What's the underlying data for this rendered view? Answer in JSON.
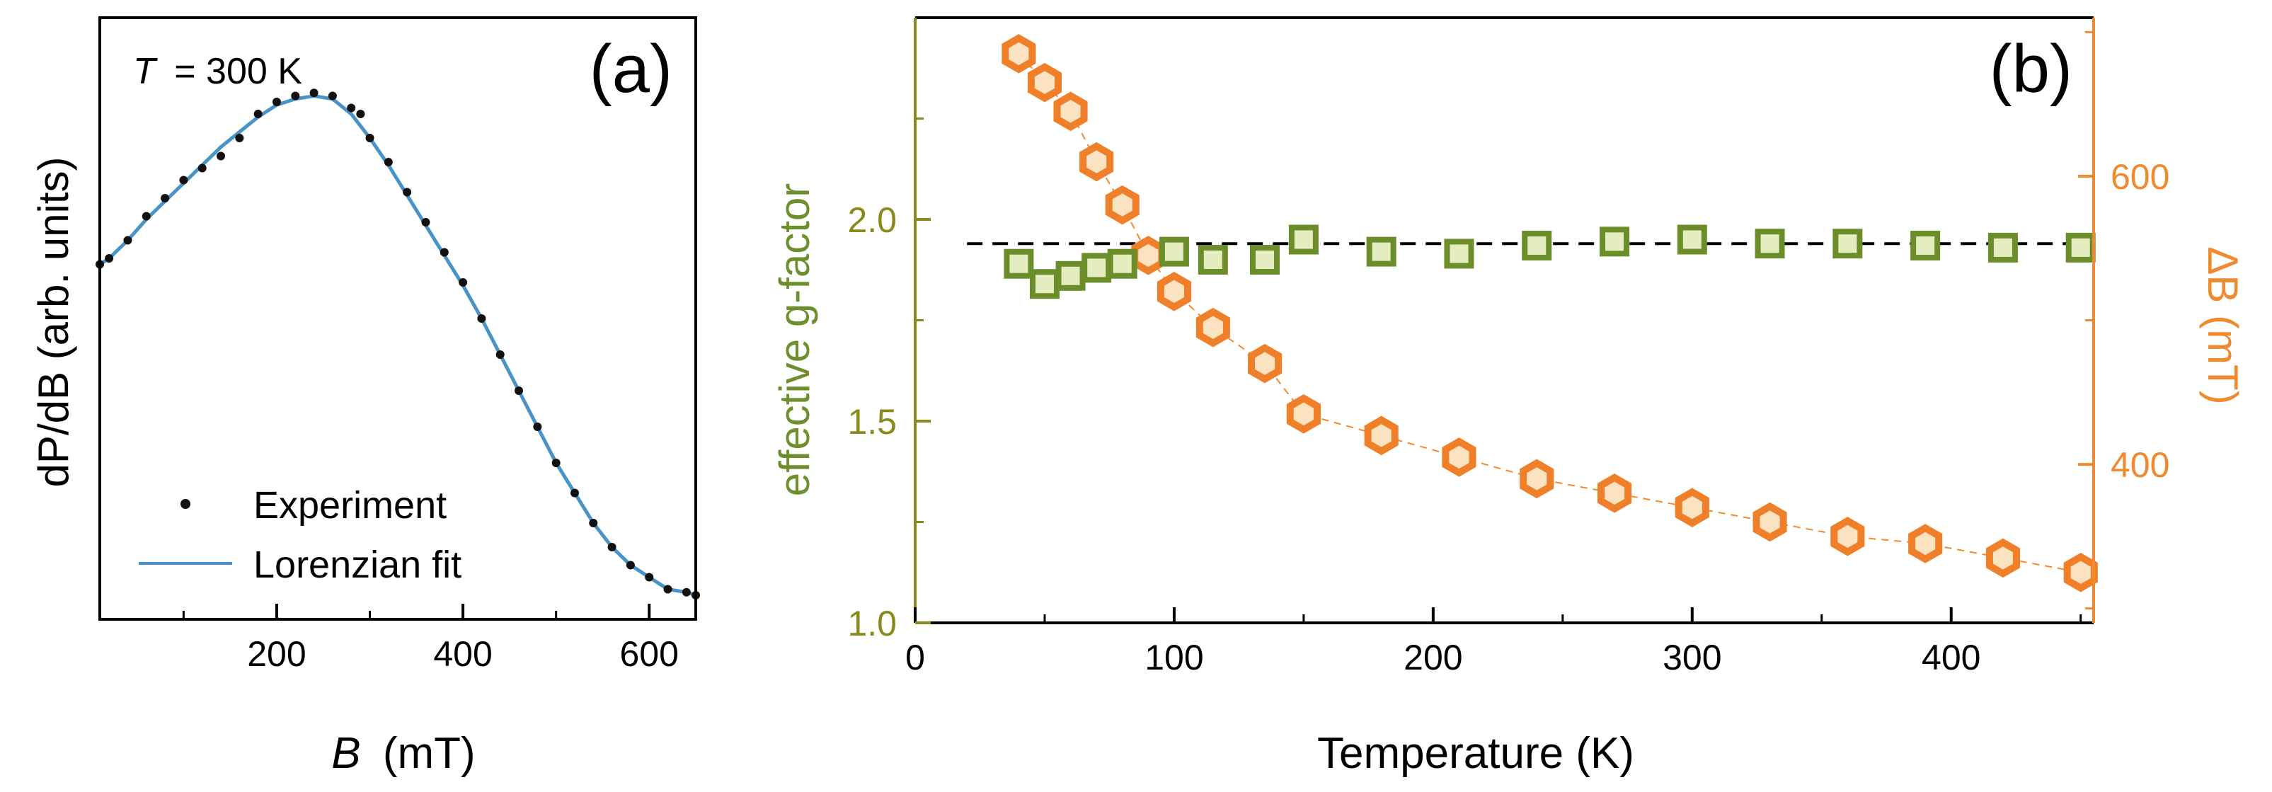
{
  "colors": {
    "axis": "#000000",
    "experiment": "#111111",
    "fit": "#4a93c6",
    "g_axis": "#8a8a1a",
    "g_label": "#6e8f2e",
    "g_marker_stroke": "#6b8e2b",
    "g_marker_fill": "#e4ecc0",
    "db_axis": "#f08a2e",
    "db_label": "#f08a2e",
    "db_marker_stroke": "#f07f2a",
    "db_marker_fill": "#fbe2c0",
    "dashed_ref": "#000000"
  },
  "chart_data": [
    {
      "panel_label": "(a)",
      "type": "line",
      "annotation_prefix": "T",
      "annotation_suffix": "= 300 K",
      "xlabel_italic": "B",
      "xlabel_rest": "(mT)",
      "ylabel": "dP/dB (arb. units)",
      "xlim": [
        10,
        650
      ],
      "ylim": [
        0,
        1
      ],
      "xticks": [
        200,
        400,
        600
      ],
      "xminor": [
        100,
        300,
        500
      ],
      "legend": [
        {
          "label": "Experiment",
          "marker": "dot"
        },
        {
          "label": "Lorenzian fit",
          "marker": "line"
        }
      ],
      "series": [
        {
          "name": "Experiment",
          "x": [
            10,
            20,
            40,
            60,
            80,
            100,
            120,
            140,
            160,
            180,
            200,
            220,
            240,
            260,
            280,
            290,
            300,
            320,
            340,
            360,
            380,
            400,
            420,
            440,
            460,
            480,
            500,
            520,
            540,
            560,
            580,
            600,
            620,
            640,
            650
          ],
          "y": [
            0.59,
            0.6,
            0.63,
            0.67,
            0.7,
            0.73,
            0.75,
            0.77,
            0.8,
            0.84,
            0.86,
            0.87,
            0.875,
            0.87,
            0.85,
            0.84,
            0.8,
            0.76,
            0.71,
            0.66,
            0.61,
            0.56,
            0.5,
            0.44,
            0.38,
            0.32,
            0.26,
            0.21,
            0.16,
            0.12,
            0.09,
            0.07,
            0.05,
            0.045,
            0.04
          ]
        },
        {
          "name": "Lorenzian fit",
          "x": [
            10,
            20,
            40,
            60,
            80,
            100,
            120,
            140,
            160,
            180,
            200,
            220,
            240,
            260,
            280,
            300,
            320,
            340,
            360,
            380,
            400,
            420,
            440,
            460,
            480,
            500,
            520,
            540,
            560,
            580,
            600,
            620,
            640,
            650
          ],
          "y": [
            0.59,
            0.6,
            0.63,
            0.665,
            0.695,
            0.725,
            0.755,
            0.785,
            0.81,
            0.835,
            0.855,
            0.865,
            0.87,
            0.865,
            0.84,
            0.8,
            0.755,
            0.705,
            0.655,
            0.605,
            0.555,
            0.5,
            0.44,
            0.38,
            0.32,
            0.26,
            0.21,
            0.16,
            0.12,
            0.09,
            0.07,
            0.05,
            0.045,
            0.04
          ]
        }
      ]
    },
    {
      "panel_label": "(b)",
      "type": "scatter",
      "xlabel": "Temperature (K)",
      "ylabel_left": "effective g-factor",
      "ylabel_right": "ΔB (mT)",
      "xlim": [
        0,
        455
      ],
      "ylim_left": [
        1.0,
        2.5
      ],
      "ylim_right": [
        290,
        710
      ],
      "xticks": [
        0,
        100,
        200,
        300,
        400
      ],
      "xtick_labels": [
        "0",
        "100",
        "200",
        "300",
        "400"
      ],
      "xminor": [
        50,
        150,
        250,
        350,
        450
      ],
      "yticks_left": [
        1.0,
        1.5,
        2.0
      ],
      "ytick_labels_left": [
        "1.0",
        "1.5",
        "2.0"
      ],
      "yminor_left": [
        1.25,
        1.75,
        2.25
      ],
      "yticks_right": [
        400,
        600
      ],
      "ytick_labels_right": [
        "400",
        "600"
      ],
      "yminor_right": [
        300,
        500,
        700
      ],
      "reference_g": 1.94,
      "series": [
        {
          "name": "effective g-factor",
          "axis": "left",
          "marker": "square",
          "x": [
            40,
            50,
            60,
            70,
            80,
            100,
            115,
            135,
            150,
            180,
            210,
            240,
            270,
            300,
            330,
            360,
            390,
            420,
            450
          ],
          "y": [
            1.89,
            1.84,
            1.86,
            1.88,
            1.89,
            1.92,
            1.9,
            1.9,
            1.95,
            1.92,
            1.915,
            1.935,
            1.945,
            1.95,
            1.94,
            1.94,
            1.935,
            1.93,
            1.93
          ]
        },
        {
          "name": "ΔB",
          "axis": "right",
          "marker": "hexagon",
          "x": [
            40,
            50,
            60,
            70,
            80,
            90,
            100,
            115,
            135,
            150,
            180,
            210,
            240,
            270,
            300,
            330,
            360,
            390,
            420,
            450
          ],
          "y": [
            685,
            665,
            645,
            610,
            580,
            545,
            520,
            495,
            470,
            435,
            420,
            405,
            390,
            380,
            370,
            360,
            350,
            345,
            335,
            325
          ]
        }
      ]
    }
  ]
}
